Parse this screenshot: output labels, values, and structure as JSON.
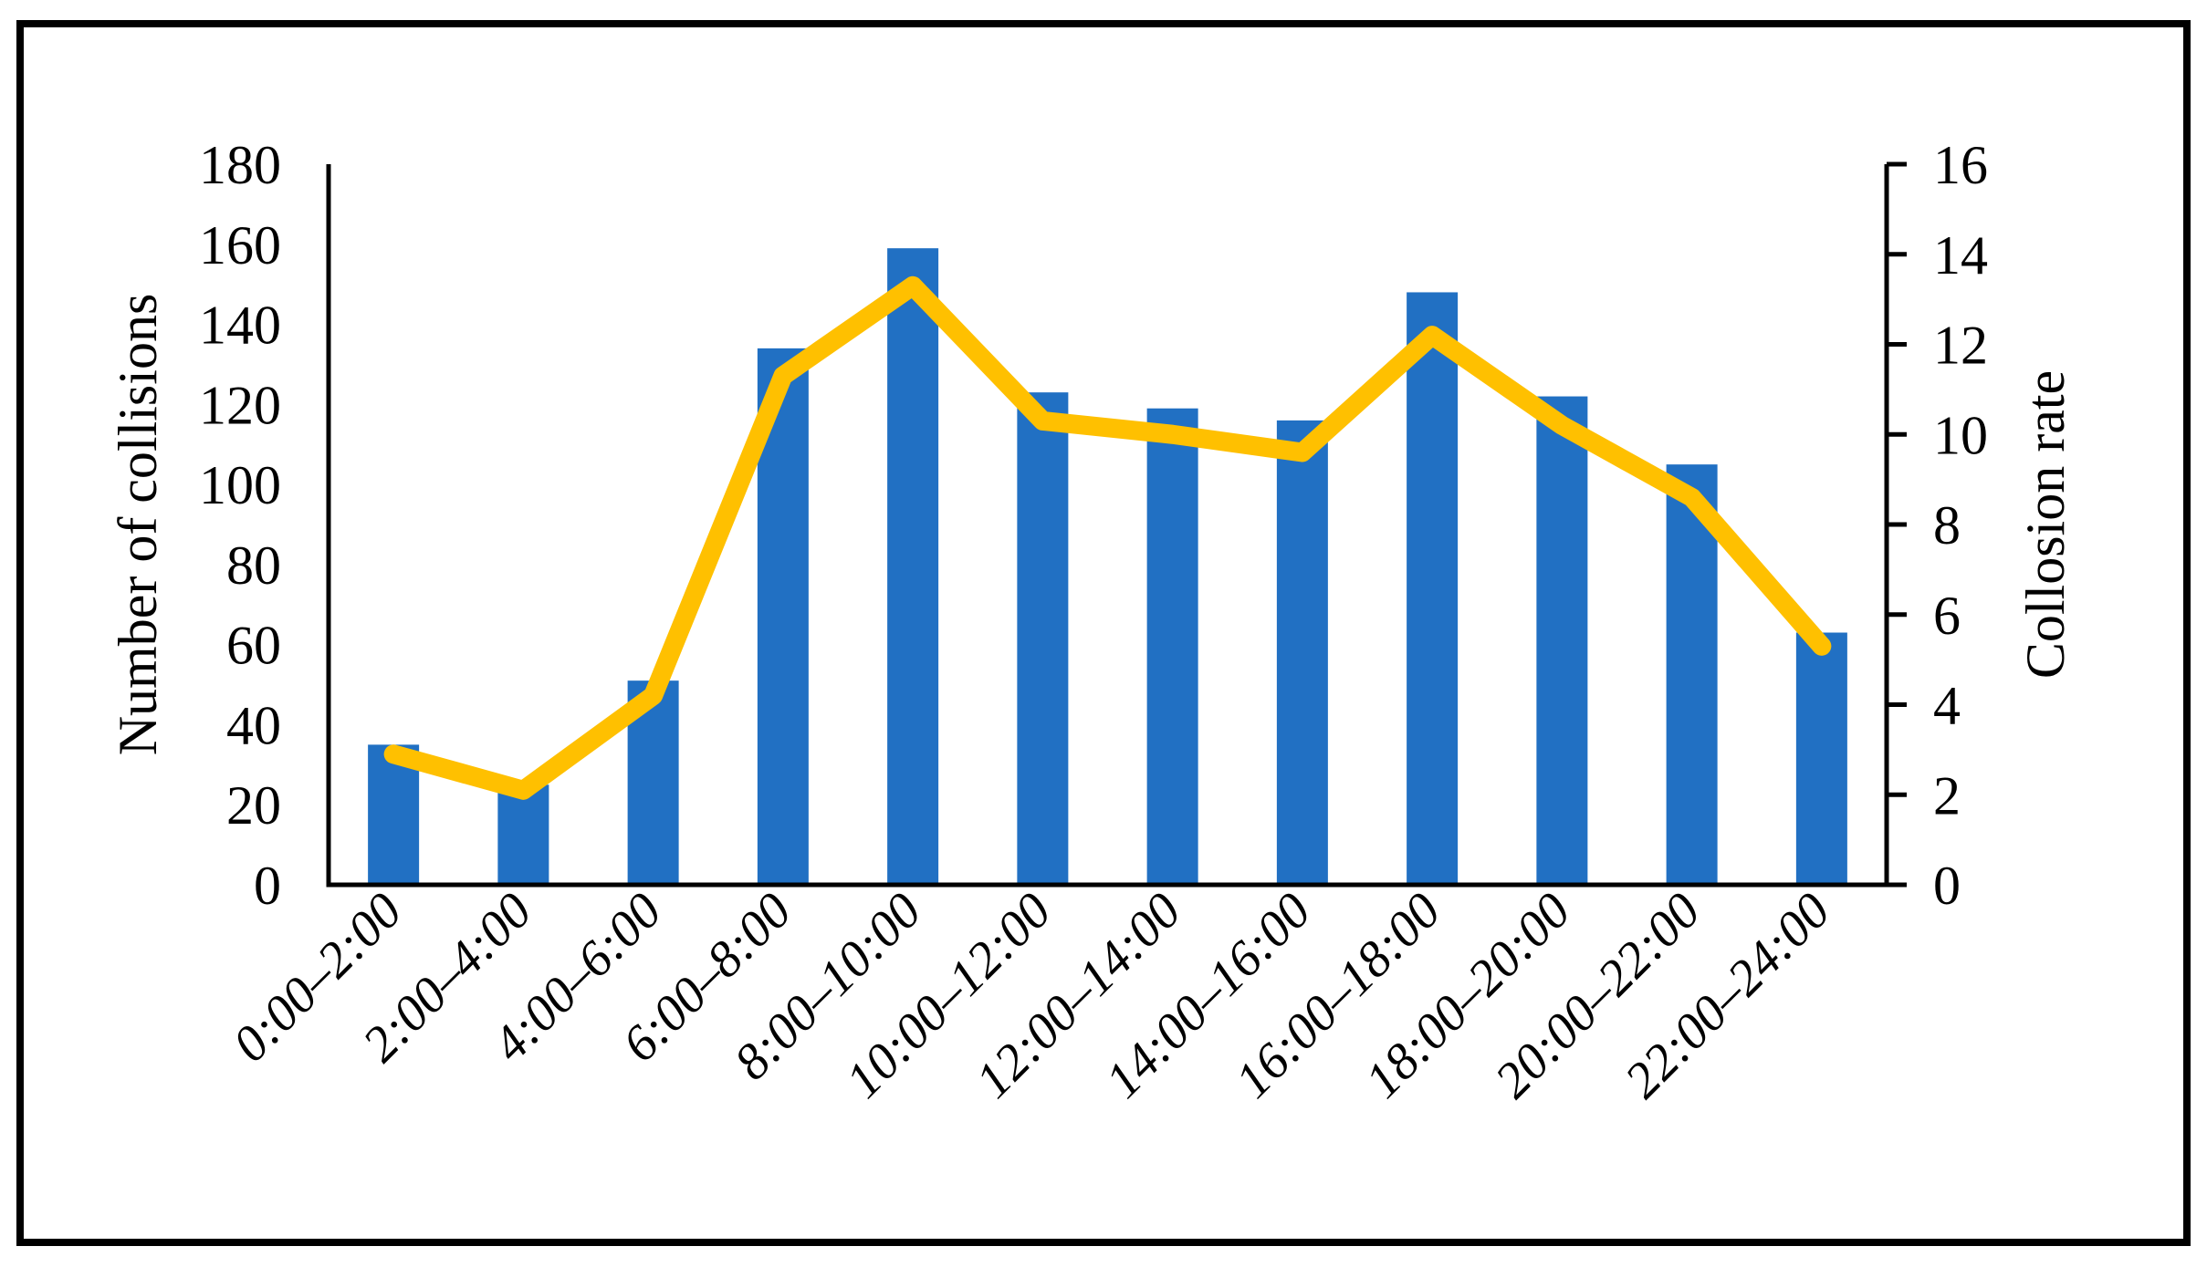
{
  "figure": {
    "background": "#ffffff",
    "border_color": "#000000"
  },
  "chart_data": {
    "type": "combo-bar-line",
    "title": "",
    "grid": false,
    "legend": "none",
    "categories": [
      "0:00–2:00",
      "2:00–4:00",
      "4:00–6:00",
      "6:00–8:00",
      "8:00–10:00",
      "10:00–12:00",
      "12:00–14:00",
      "14:00–16:00",
      "16:00–18:00",
      "18:00–20:00",
      "20:00–22:00",
      "22:00–24:00"
    ],
    "series": [
      {
        "name": "Number of collisions",
        "type": "bar",
        "axis": "left",
        "color": "#2170C3",
        "values": [
          35,
          25,
          51,
          134,
          159,
          123,
          119,
          116,
          148,
          122,
          105,
          63
        ]
      },
      {
        "name": "Collosion rate",
        "type": "line",
        "axis": "right",
        "color": "#FFC000",
        "values": [
          2.9,
          2.1,
          4.2,
          11.3,
          13.3,
          10.3,
          10.0,
          9.6,
          12.2,
          10.2,
          8.6,
          5.3
        ]
      }
    ],
    "left_axis": {
      "label": "Number of collisions",
      "min": 0,
      "max": 180,
      "step": 20
    },
    "right_axis": {
      "label": "Collosion rate",
      "min": 0,
      "max": 16,
      "step": 2
    },
    "axis_color": "#000000"
  }
}
